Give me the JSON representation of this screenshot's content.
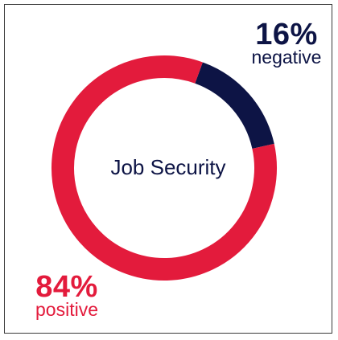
{
  "chart_data": {
    "type": "pie",
    "donut": true,
    "center_label": "Job Security",
    "slices": [
      {
        "label": "negative",
        "value": 16,
        "display": "16%",
        "color": "#0d1445"
      },
      {
        "label": "positive",
        "value": 84,
        "display": "84%",
        "color": "#e31b3c"
      }
    ]
  },
  "labels": {
    "center": "Job Security",
    "negative_pct": "16%",
    "negative_caption": "negative",
    "positive_pct": "84%",
    "positive_caption": "positive"
  }
}
